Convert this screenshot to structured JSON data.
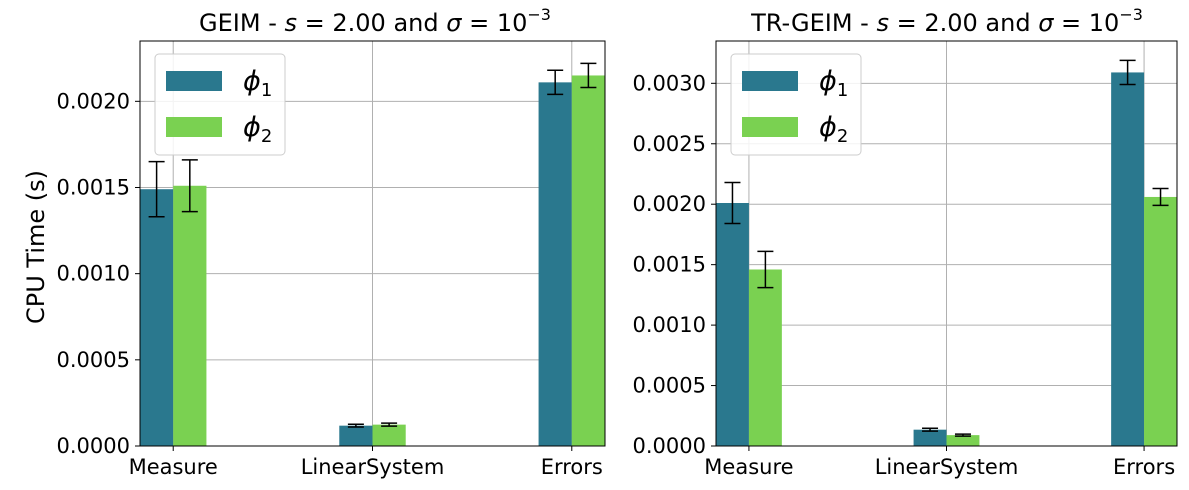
{
  "figure": {
    "ylabel": "CPU Time (s)",
    "colors": {
      "phi1": "#2a788e",
      "phi2": "#7ad151",
      "grid": "#b0b0b0",
      "errorbar": "#000000"
    }
  },
  "chart_data": [
    {
      "type": "bar",
      "title_prefix": "GEIM - ",
      "title_var": "s",
      "title_mid": " = 2.00 and ",
      "title_sigma": "σ",
      "title_eq": " = 10",
      "title_exp": "−3",
      "xlabel": "",
      "ylabel": "CPU Time (s)",
      "categories": [
        "Measure",
        "LinearSystem",
        "Errors"
      ],
      "ylim": [
        0,
        0.00235
      ],
      "yticks": [
        "0.0000",
        "0.0005",
        "0.0010",
        "0.0015",
        "0.0020"
      ],
      "ytick_values": [
        0,
        0.0005,
        0.001,
        0.0015,
        0.002
      ],
      "grid": true,
      "legend_position": "top-left",
      "series": [
        {
          "name_base": "ϕ",
          "name_sub": "1",
          "color": "#2a788e",
          "values": [
            0.00149,
            0.000118,
            0.00211
          ],
          "errors": [
            0.00016,
            8e-06,
            7e-05
          ]
        },
        {
          "name_base": "ϕ",
          "name_sub": "2",
          "color": "#7ad151",
          "values": [
            0.00151,
            0.000124,
            0.00215
          ],
          "errors": [
            0.00015,
            9e-06,
            7e-05
          ]
        }
      ]
    },
    {
      "type": "bar",
      "title_prefix": "TR-GEIM - ",
      "title_var": "s",
      "title_mid": " = 2.00 and ",
      "title_sigma": "σ",
      "title_eq": " = 10",
      "title_exp": "−3",
      "xlabel": "",
      "ylabel": "",
      "categories": [
        "Measure",
        "LinearSystem",
        "Errors"
      ],
      "ylim": [
        0,
        0.00335
      ],
      "yticks": [
        "0.0000",
        "0.0005",
        "0.0010",
        "0.0015",
        "0.0020",
        "0.0025",
        "0.0030"
      ],
      "ytick_values": [
        0,
        0.0005,
        0.001,
        0.0015,
        0.002,
        0.0025,
        0.003
      ],
      "grid": true,
      "legend_position": "top-left",
      "series": [
        {
          "name_base": "ϕ",
          "name_sub": "1",
          "color": "#2a788e",
          "values": [
            0.00201,
            0.000135,
            0.00309
          ],
          "errors": [
            0.00017,
            1.2e-05,
            0.0001
          ]
        },
        {
          "name_base": "ϕ",
          "name_sub": "2",
          "color": "#7ad151",
          "values": [
            0.00146,
            9e-05,
            0.00206
          ],
          "errors": [
            0.00015,
            8e-06,
            7e-05
          ]
        }
      ]
    }
  ]
}
